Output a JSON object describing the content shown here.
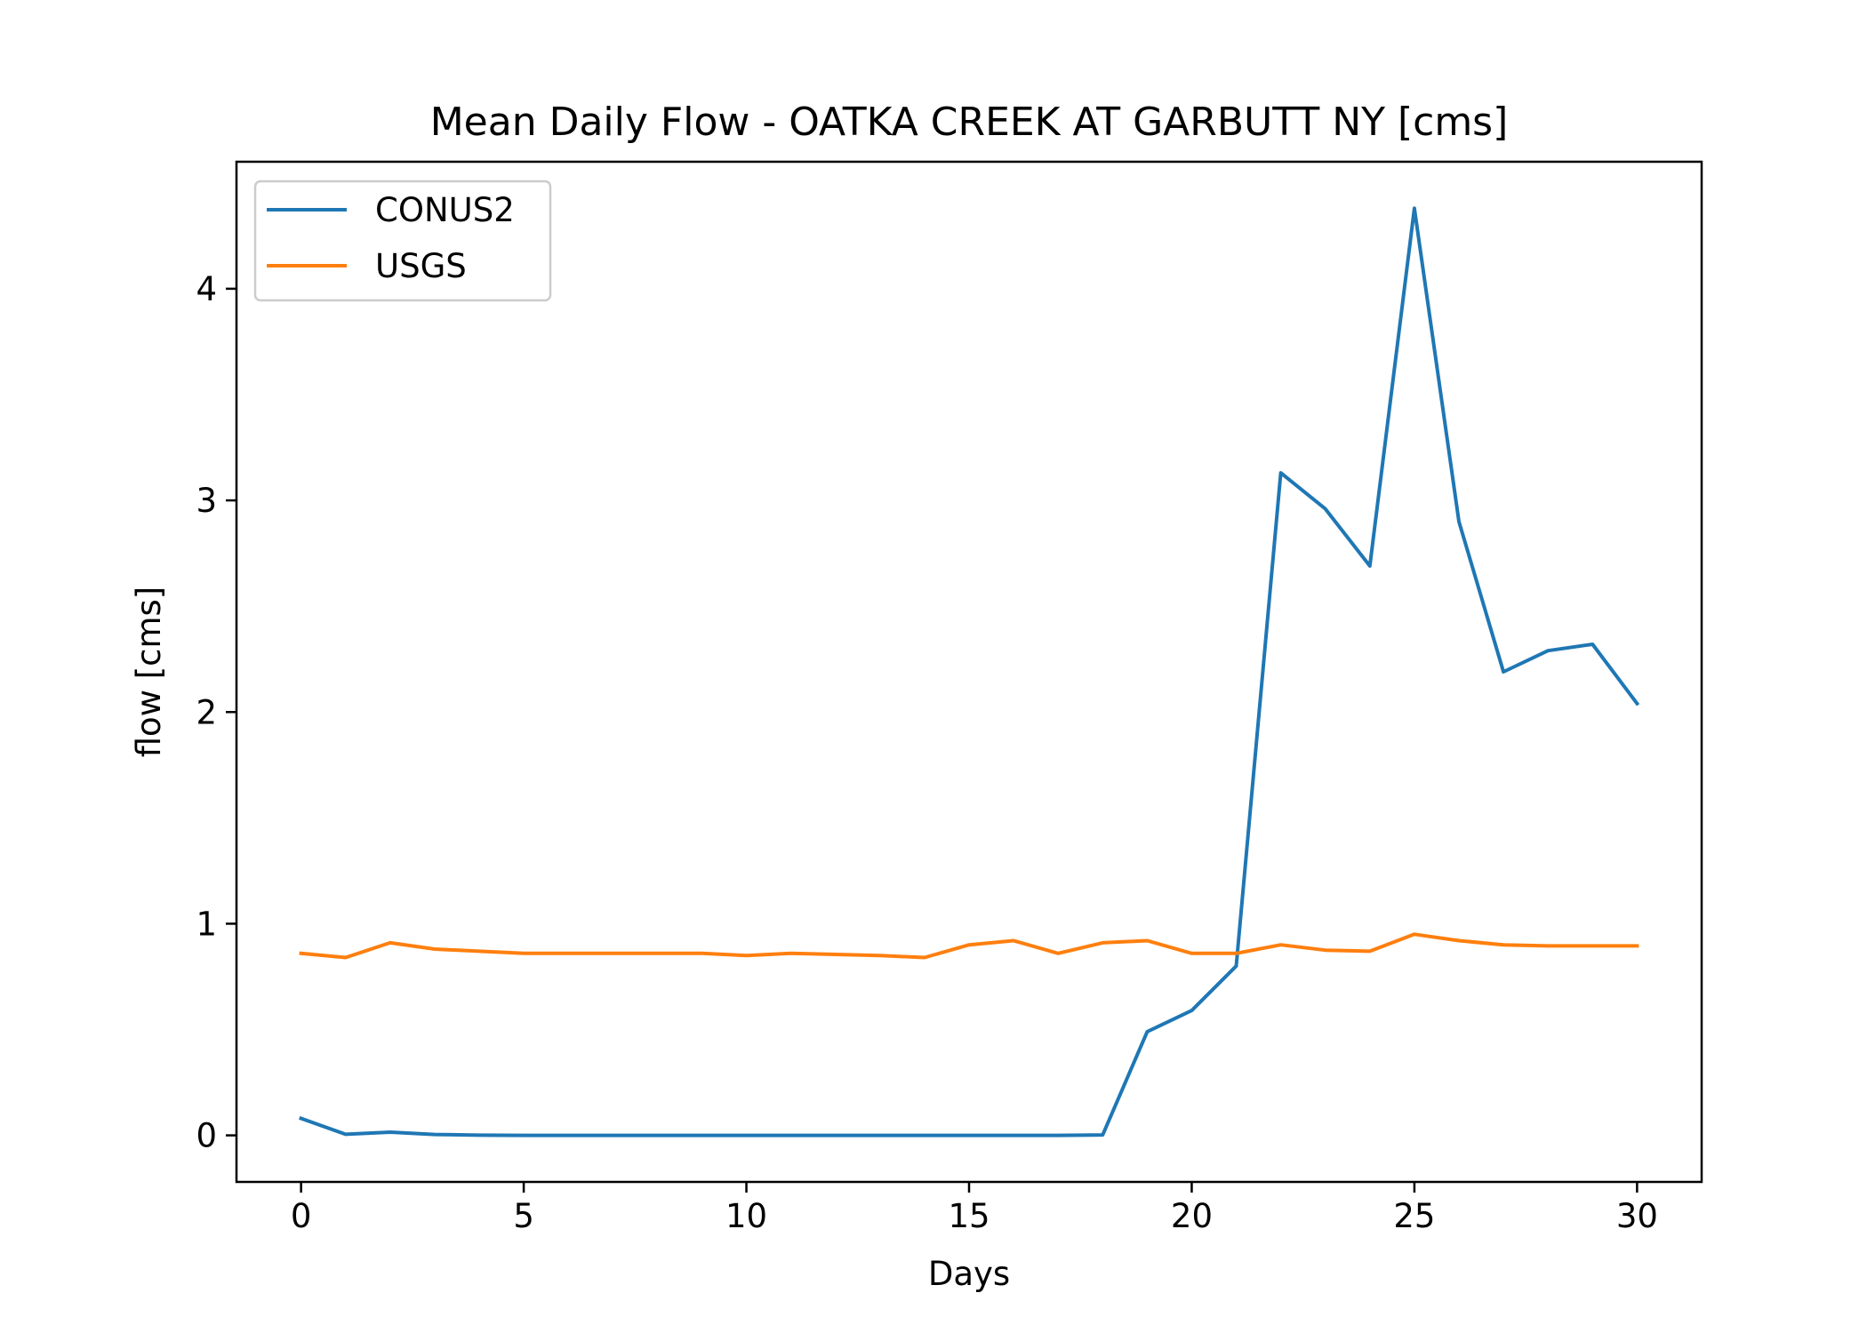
{
  "chart_data": {
    "type": "line",
    "title": "Mean Daily Flow - OATKA CREEK AT GARBUTT NY [cms]",
    "xlabel": "Days",
    "ylabel": "flow [cms]",
    "xlim": [
      -1.45,
      31.45
    ],
    "ylim": [
      -0.22,
      4.6
    ],
    "xticks": [
      0,
      5,
      10,
      15,
      20,
      25,
      30
    ],
    "yticks": [
      0,
      1,
      2,
      3,
      4
    ],
    "grid": false,
    "legend_position": "top-left",
    "x": [
      0,
      1,
      2,
      3,
      4,
      5,
      6,
      7,
      8,
      9,
      10,
      11,
      12,
      13,
      14,
      15,
      16,
      17,
      18,
      19,
      20,
      21,
      22,
      23,
      24,
      25,
      26,
      27,
      28,
      29,
      30
    ],
    "series": [
      {
        "name": "CONUS2",
        "color": "#1f77b4",
        "values": [
          0.08,
          0.005,
          0.015,
          0.004,
          0.001,
          0,
          0,
          0,
          0,
          0,
          0,
          0,
          0,
          0,
          0,
          0,
          0,
          0,
          0.002,
          0.49,
          0.59,
          0.8,
          3.13,
          2.96,
          2.69,
          4.38,
          2.9,
          2.19,
          2.29,
          2.32,
          2.04
        ]
      },
      {
        "name": "USGS",
        "color": "#ff7f0e",
        "values": [
          0.86,
          0.84,
          0.91,
          0.88,
          0.87,
          0.86,
          0.86,
          0.86,
          0.86,
          0.86,
          0.85,
          0.86,
          0.855,
          0.85,
          0.84,
          0.9,
          0.92,
          0.86,
          0.91,
          0.92,
          0.86,
          0.86,
          0.9,
          0.875,
          0.87,
          0.95,
          0.92,
          0.9,
          0.895,
          0.895,
          0.895
        ]
      }
    ]
  }
}
